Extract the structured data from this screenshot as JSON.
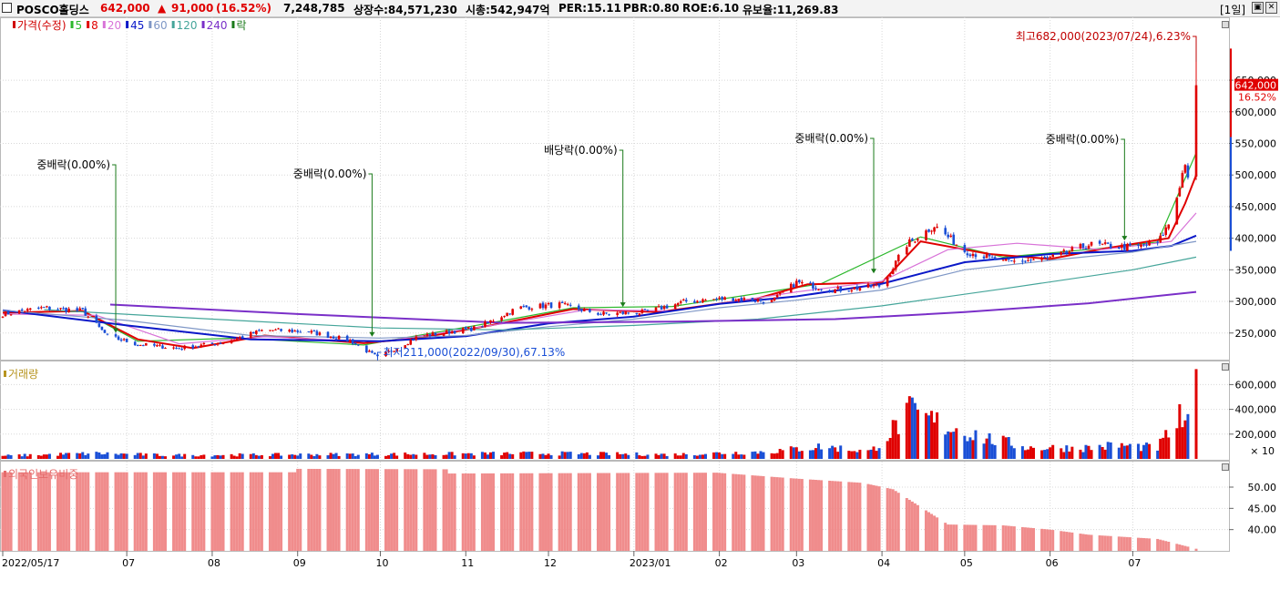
{
  "header": {
    "stock_name": "POSCO홀딩스",
    "price": "642,000",
    "change_arrow": "▲",
    "change": "91,000",
    "change_pct": "(16.52%)",
    "volume": "7,248,785",
    "shares": "상장수:84,571,230",
    "market_cap": "시총:542,947억",
    "per": "PER:15.11",
    "pbr": "PBR:0.80",
    "roe": "ROE:6.10",
    "float_ratio": "유보율:11,269.83",
    "period": "[1일]",
    "colors": {
      "up": "#e00000",
      "down": "#1a4fd6"
    }
  },
  "chart_data": [
    {
      "type": "candlestick",
      "legend": [
        {
          "label": "가격(수정)",
          "color": "#d00000"
        },
        {
          "label": "5",
          "color": "#2cb82c"
        },
        {
          "label": "8",
          "color": "#e00000"
        },
        {
          "label": "20",
          "color": "#d873d8"
        },
        {
          "label": "45",
          "color": "#0a18c8"
        },
        {
          "label": "60",
          "color": "#7f97c6"
        },
        {
          "label": "120",
          "color": "#45a59a"
        },
        {
          "label": "240",
          "color": "#7a2fc8"
        },
        {
          "label": "락",
          "color": "#1a7a1a"
        }
      ],
      "ylim": [
        200000,
        700000
      ],
      "y_ticks": [
        "250,000",
        "300,000",
        "350,000",
        "400,000",
        "450,000",
        "500,000",
        "550,000",
        "600,000",
        "650,000"
      ],
      "y_tick_values": [
        250000,
        300000,
        350000,
        400000,
        450000,
        500000,
        550000,
        600000,
        650000
      ],
      "x_labels": [
        "2022/05/17",
        "07",
        "08",
        "09",
        "10",
        "11",
        "12",
        "2023/01",
        "02",
        "03",
        "04",
        "05",
        "06",
        "07"
      ],
      "x_label_dates": [
        "2022-05-17",
        "2022-07-01",
        "2022-08-01",
        "2022-09-01",
        "2022-10-01",
        "2022-11-01",
        "2022-12-01",
        "2023-01-01",
        "2023-02-01",
        "2023-03-01",
        "2023-04-01",
        "2023-05-01",
        "2023-06-01",
        "2023-07-01"
      ],
      "price_path": [
        [
          "2022-05-17",
          280000
        ],
        [
          "2022-06-01",
          290000
        ],
        [
          "2022-06-15",
          285000
        ],
        [
          "2022-06-24",
          245000
        ],
        [
          "2022-07-05",
          232000
        ],
        [
          "2022-07-20",
          226000
        ],
        [
          "2022-08-05",
          235000
        ],
        [
          "2022-08-20",
          255000
        ],
        [
          "2022-09-05",
          252000
        ],
        [
          "2022-09-20",
          238000
        ],
        [
          "2022-09-30",
          211000
        ],
        [
          "2022-10-15",
          245000
        ],
        [
          "2022-11-05",
          258000
        ],
        [
          "2022-11-20",
          290000
        ],
        [
          "2022-12-05",
          295000
        ],
        [
          "2022-12-20",
          280000
        ],
        [
          "2023-01-05",
          283000
        ],
        [
          "2023-01-20",
          300000
        ],
        [
          "2023-02-05",
          305000
        ],
        [
          "2023-02-20",
          300000
        ],
        [
          "2023-03-01",
          330000
        ],
        [
          "2023-03-15",
          318000
        ],
        [
          "2023-04-01",
          325000
        ],
        [
          "2023-04-10",
          390000
        ],
        [
          "2023-04-20",
          420000
        ],
        [
          "2023-05-01",
          380000
        ],
        [
          "2023-05-15",
          362000
        ],
        [
          "2023-06-01",
          368000
        ],
        [
          "2023-06-15",
          390000
        ],
        [
          "2023-07-01",
          385000
        ],
        [
          "2023-07-10",
          392000
        ],
        [
          "2023-07-15",
          430000
        ],
        [
          "2023-07-20",
          520000
        ],
        [
          "2023-07-21",
          490000
        ],
        [
          "2023-07-24",
          642000
        ]
      ],
      "current_price_label": "642,000",
      "current_pct_label": "16.52%",
      "annotations": [
        {
          "text": "최고682,000(2023/07/24),6.23%",
          "date": "2023-07-24",
          "value": 682000,
          "kind": "high"
        },
        {
          "text": "최저211,000(2022/09/30),67.13%",
          "date": "2022-09-30",
          "value": 211000,
          "kind": "low"
        },
        {
          "text": "중배락(0.00%)",
          "date": "2022-06-27",
          "value": 246000,
          "kind": "event"
        },
        {
          "text": "중배락(0.00%)",
          "date": "2022-09-28",
          "value": 240000,
          "kind": "event"
        },
        {
          "text": "배당락(0.00%)",
          "date": "2022-12-28",
          "value": 287000,
          "kind": "event"
        },
        {
          "text": "중배락(0.00%)",
          "date": "2023-03-29",
          "value": 340000,
          "kind": "event"
        },
        {
          "text": "중배락(0.00%)",
          "date": "2023-06-28",
          "value": 392000,
          "kind": "event"
        }
      ],
      "moving_averages": [
        {
          "name": "5",
          "color": "#2cb82c",
          "values": [
            [
              "2022-05-17",
              283000
            ],
            [
              "2022-06-15",
              284000
            ],
            [
              "2022-07-05",
              237000
            ],
            [
              "2022-08-10",
              242000
            ],
            [
              "2022-09-25",
              231000
            ],
            [
              "2022-11-10",
              266000
            ],
            [
              "2022-12-10",
              290000
            ],
            [
              "2023-01-15",
              292000
            ],
            [
              "2023-03-10",
              328000
            ],
            [
              "2023-04-15",
              402000
            ],
            [
              "2023-05-15",
              370000
            ],
            [
              "2023-06-20",
              384000
            ],
            [
              "2023-07-10",
              394000
            ],
            [
              "2023-07-24",
              535000
            ]
          ]
        },
        {
          "name": "8",
          "color": "#e00000",
          "values": [
            [
              "2022-05-17",
              282000
            ],
            [
              "2022-06-15",
              285000
            ],
            [
              "2022-07-05",
              240000
            ],
            [
              "2022-07-25",
              226000
            ],
            [
              "2022-08-20",
              246000
            ],
            [
              "2022-09-25",
              234000
            ],
            [
              "2022-10-15",
              242000
            ],
            [
              "2022-11-10",
              262000
            ],
            [
              "2022-12-10",
              288000
            ],
            [
              "2023-01-10",
              283000
            ],
            [
              "2023-02-15",
              305000
            ],
            [
              "2023-03-05",
              327000
            ],
            [
              "2023-04-01",
              330000
            ],
            [
              "2023-04-15",
              395000
            ],
            [
              "2023-05-10",
              375000
            ],
            [
              "2023-06-01",
              367000
            ],
            [
              "2023-06-20",
              383000
            ],
            [
              "2023-07-14",
              400000
            ],
            [
              "2023-07-20",
              455000
            ],
            [
              "2023-07-24",
              500000
            ]
          ]
        },
        {
          "name": "20",
          "color": "#d873d8",
          "values": [
            [
              "2022-05-17",
              280000
            ],
            [
              "2022-06-20",
              278000
            ],
            [
              "2022-07-20",
              233000
            ],
            [
              "2022-08-20",
              244000
            ],
            [
              "2022-10-01",
              236000
            ],
            [
              "2022-11-15",
              265000
            ],
            [
              "2022-12-15",
              287000
            ],
            [
              "2023-01-15",
              285000
            ],
            [
              "2023-03-01",
              315000
            ],
            [
              "2023-04-01",
              332000
            ],
            [
              "2023-04-25",
              382000
            ],
            [
              "2023-05-20",
              392000
            ],
            [
              "2023-06-20",
              382000
            ],
            [
              "2023-07-15",
              395000
            ],
            [
              "2023-07-24",
              440000
            ]
          ]
        },
        {
          "name": "45",
          "color": "#0a18c8",
          "values": [
            [
              "2022-05-17",
              286000
            ],
            [
              "2022-07-01",
              262000
            ],
            [
              "2022-08-15",
              240000
            ],
            [
              "2022-10-01",
              237000
            ],
            [
              "2022-11-01",
              245000
            ],
            [
              "2022-12-01",
              265000
            ],
            [
              "2023-01-01",
              276000
            ],
            [
              "2023-02-01",
              296000
            ],
            [
              "2023-03-01",
              308000
            ],
            [
              "2023-04-01",
              328000
            ],
            [
              "2023-05-01",
              362000
            ],
            [
              "2023-06-01",
              375000
            ],
            [
              "2023-07-01",
              380000
            ],
            [
              "2023-07-15",
              388000
            ],
            [
              "2023-07-24",
              404000
            ]
          ]
        },
        {
          "name": "60",
          "color": "#7f97c6",
          "values": [
            [
              "2022-05-17",
              286000
            ],
            [
              "2022-07-01",
              270000
            ],
            [
              "2022-08-15",
              246000
            ],
            [
              "2022-10-01",
              242000
            ],
            [
              "2022-11-01",
              246000
            ],
            [
              "2022-12-01",
              260000
            ],
            [
              "2023-01-01",
              272000
            ],
            [
              "2023-02-01",
              290000
            ],
            [
              "2023-03-01",
              302000
            ],
            [
              "2023-04-01",
              318000
            ],
            [
              "2023-05-01",
              350000
            ],
            [
              "2023-06-01",
              365000
            ],
            [
              "2023-07-01",
              378000
            ],
            [
              "2023-07-24",
              395000
            ]
          ]
        },
        {
          "name": "120",
          "color": "#45a59a",
          "values": [
            [
              "2022-06-01",
              287000
            ],
            [
              "2022-08-01",
              272000
            ],
            [
              "2022-10-01",
              258000
            ],
            [
              "2022-11-15",
              255000
            ],
            [
              "2023-01-01",
              262000
            ],
            [
              "2023-02-15",
              272000
            ],
            [
              "2023-04-01",
              293000
            ],
            [
              "2023-05-15",
              320000
            ],
            [
              "2023-07-01",
              350000
            ],
            [
              "2023-07-24",
              370000
            ]
          ]
        },
        {
          "name": "240",
          "color": "#7a2fc8",
          "values": [
            [
              "2022-06-25",
              295000
            ],
            [
              "2022-09-01",
              280000
            ],
            [
              "2022-11-15",
              266000
            ],
            [
              "2023-01-15",
              268000
            ],
            [
              "2023-03-15",
              272000
            ],
            [
              "2023-05-01",
              283000
            ],
            [
              "2023-06-15",
              297000
            ],
            [
              "2023-07-24",
              315000
            ]
          ]
        }
      ]
    },
    {
      "type": "bar",
      "title": "거래량",
      "y_ticks": [
        "200,000",
        "400,000",
        "600,000"
      ],
      "y_tick_values": [
        200000,
        400000,
        600000
      ],
      "unit_label": "× 10",
      "ylim": [
        0,
        750000
      ],
      "volume_profile": [
        [
          "2022-05-17",
          25000
        ],
        [
          "2022-06-20",
          45000
        ],
        [
          "2022-07-15",
          30000
        ],
        [
          "2022-09-01",
          35000
        ],
        [
          "2022-10-20",
          40000
        ],
        [
          "2022-12-01",
          45000
        ],
        [
          "2023-01-15",
          35000
        ],
        [
          "2023-02-20",
          60000
        ],
        [
          "2023-03-10",
          100000
        ],
        [
          "2023-03-28",
          60000
        ],
        [
          "2023-04-11",
          370000
        ],
        [
          "2023-04-20",
          300000
        ],
        [
          "2023-05-10",
          160000
        ],
        [
          "2023-05-25",
          90000
        ],
        [
          "2023-06-15",
          90000
        ],
        [
          "2023-06-25",
          110000
        ],
        [
          "2023-07-10",
          90000
        ],
        [
          "2023-07-18",
          320000
        ],
        [
          "2023-07-21",
          260000
        ],
        [
          "2023-07-24",
          725000
        ]
      ]
    },
    {
      "type": "bar",
      "title": "외국인보유비중",
      "y_ticks": [
        "40.00",
        "45.00",
        "50.00"
      ],
      "y_tick_values": [
        40,
        45,
        50
      ],
      "ylim": [
        35,
        56
      ],
      "color": "#f08c8c",
      "ratio_profile": [
        [
          "2022-05-17",
          53.5
        ],
        [
          "2022-08-31",
          53.5
        ],
        [
          "2022-09-01",
          54.3
        ],
        [
          "2022-10-25",
          54.2
        ],
        [
          "2022-10-26",
          53.2
        ],
        [
          "2023-01-31",
          53.4
        ],
        [
          "2023-03-01",
          52.0
        ],
        [
          "2023-03-25",
          51.0
        ],
        [
          "2023-04-05",
          49.5
        ],
        [
          "2023-04-25",
          41.2
        ],
        [
          "2023-05-15",
          41.0
        ],
        [
          "2023-06-01",
          40.0
        ],
        [
          "2023-06-15",
          38.8
        ],
        [
          "2023-07-10",
          37.8
        ],
        [
          "2023-07-24",
          35.5
        ]
      ]
    }
  ]
}
